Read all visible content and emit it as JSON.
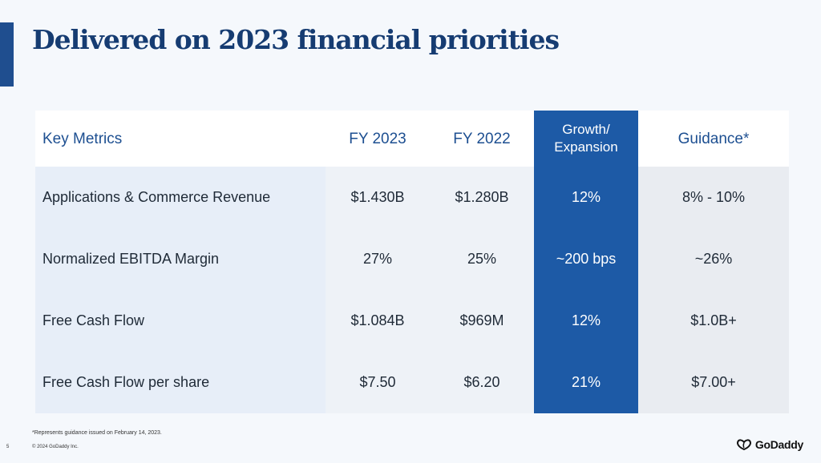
{
  "slide": {
    "title": "Delivered on 2023 financial priorities",
    "page_number": "5"
  },
  "table": {
    "headers": {
      "metric": "Key Metrics",
      "fy2023": "FY 2023",
      "fy2022": "FY 2022",
      "growth_line1": "Growth/",
      "growth_line2": "Expansion",
      "guidance": "Guidance*"
    },
    "rows": [
      {
        "metric": "Applications & Commerce Revenue",
        "fy2023": "$1.430B",
        "fy2022": "$1.280B",
        "growth": "12%",
        "guidance": "8% - 10%"
      },
      {
        "metric": "Normalized EBITDA Margin",
        "fy2023": "27%",
        "fy2022": "25%",
        "growth": "~200 bps",
        "guidance": "~26%"
      },
      {
        "metric": "Free Cash Flow",
        "fy2023": "$1.084B",
        "fy2022": "$969M",
        "growth": "12%",
        "guidance": "$1.0B+"
      },
      {
        "metric": "Free Cash Flow per share",
        "fy2023": "$7.50",
        "fy2022": "$6.20",
        "growth": "21%",
        "guidance": "$7.00+"
      }
    ]
  },
  "footer": {
    "footnote": "*Represents guidance issued on February 14, 2023.",
    "copyright": "© 2024 GoDaddy Inc.",
    "logo_text": "GoDaddy"
  },
  "colors": {
    "title": "#163c72",
    "accent_bar": "#1f4e8f",
    "highlight_column": "#1d5aa6",
    "header_text": "#1d4f91"
  }
}
